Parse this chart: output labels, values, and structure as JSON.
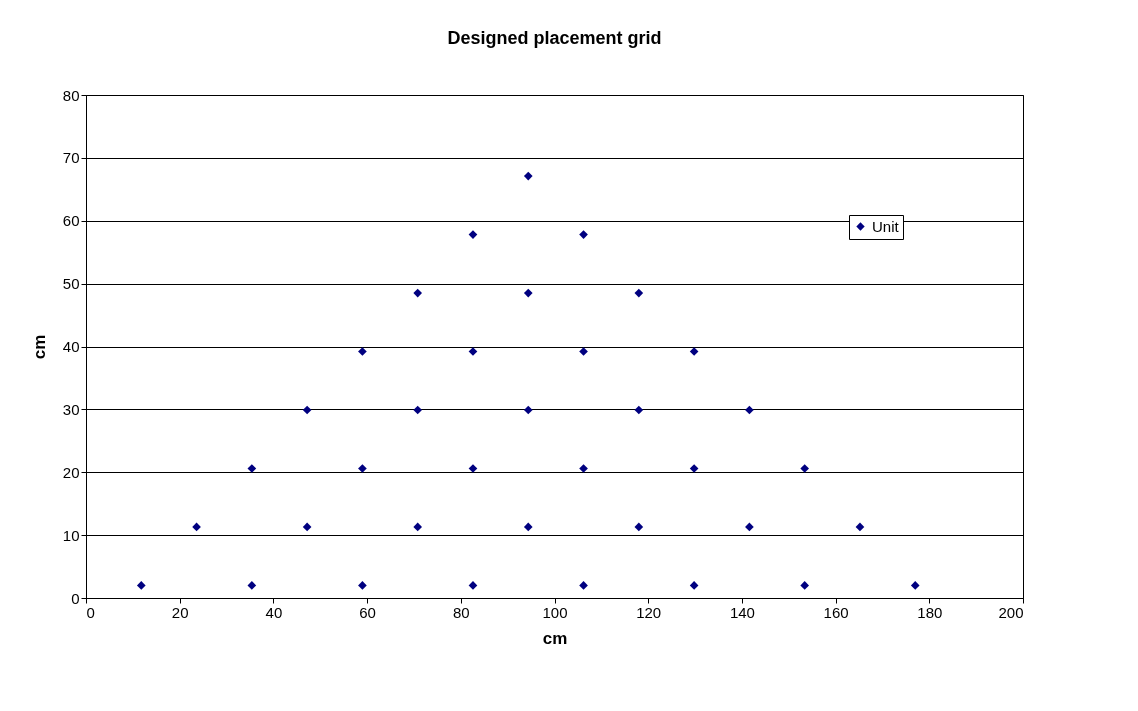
{
  "chart_data": {
    "type": "scatter",
    "title": "Designed placement grid",
    "xlabel": "cm",
    "ylabel": "cm",
    "series": [
      {
        "name": "Unit",
        "color": "#000080",
        "x": [
          11.8,
          35.4,
          59,
          82.6,
          106.2,
          129.8,
          153.4,
          177,
          23.6,
          47.2,
          70.8,
          94.4,
          118,
          141.6,
          165.2,
          35.4,
          59,
          82.6,
          106.2,
          129.8,
          153.4,
          47.2,
          70.8,
          94.4,
          118,
          141.6,
          59,
          82.6,
          106.2,
          129.8,
          70.8,
          94.4,
          118,
          82.6,
          106.2,
          94.4
        ],
        "values": [
          2,
          2,
          2,
          2,
          2,
          2,
          2,
          2,
          11.3,
          11.3,
          11.3,
          11.3,
          11.3,
          11.3,
          11.3,
          20.6,
          20.6,
          20.6,
          20.6,
          20.6,
          20.6,
          29.9,
          29.9,
          29.9,
          29.9,
          29.9,
          39.2,
          39.2,
          39.2,
          39.2,
          48.5,
          48.5,
          48.5,
          57.8,
          57.8,
          67.1
        ]
      }
    ],
    "xlim": [
      0,
      200
    ],
    "xticks": [
      0,
      20,
      40,
      60,
      80,
      100,
      120,
      140,
      160,
      180,
      200
    ],
    "ylim": [
      0,
      80
    ],
    "yticks": [
      0,
      10,
      20,
      30,
      40,
      50,
      60,
      70,
      80
    ],
    "grid": "y",
    "legend": "top right",
    "marker": "diamond"
  }
}
